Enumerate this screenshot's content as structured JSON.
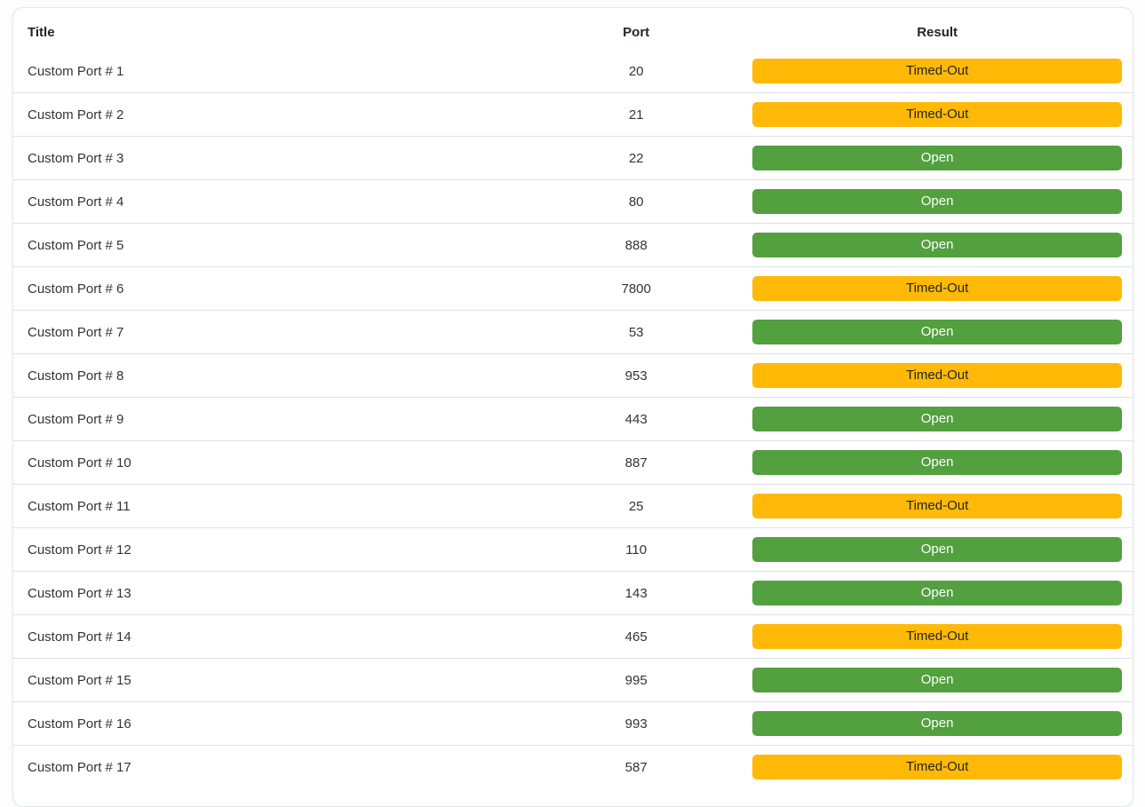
{
  "colors": {
    "open_bg": "#52A03E",
    "open_text": "#ffffff",
    "timedout_bg": "#FFB906",
    "timedout_text": "#212529",
    "row_line": "#dee2e6",
    "card_border": "#e4e7eb",
    "text_color": "#333333",
    "header_text": "#212529"
  },
  "table": {
    "columns": [
      {
        "key": "title",
        "label": "Title"
      },
      {
        "key": "port",
        "label": "Port"
      },
      {
        "key": "result",
        "label": "Result"
      }
    ],
    "rows": [
      {
        "title": "Custom Port # 1",
        "port": 20,
        "result": "Timed-Out"
      },
      {
        "title": "Custom Port # 2",
        "port": 21,
        "result": "Timed-Out"
      },
      {
        "title": "Custom Port # 3",
        "port": 22,
        "result": "Open"
      },
      {
        "title": "Custom Port # 4",
        "port": 80,
        "result": "Open"
      },
      {
        "title": "Custom Port # 5",
        "port": 888,
        "result": "Open"
      },
      {
        "title": "Custom Port # 6",
        "port": 7800,
        "result": "Timed-Out"
      },
      {
        "title": "Custom Port # 7",
        "port": 53,
        "result": "Open"
      },
      {
        "title": "Custom Port # 8",
        "port": 953,
        "result": "Timed-Out"
      },
      {
        "title": "Custom Port # 9",
        "port": 443,
        "result": "Open"
      },
      {
        "title": "Custom Port # 10",
        "port": 887,
        "result": "Open"
      },
      {
        "title": "Custom Port # 11",
        "port": 25,
        "result": "Timed-Out"
      },
      {
        "title": "Custom Port # 12",
        "port": 110,
        "result": "Open"
      },
      {
        "title": "Custom Port # 13",
        "port": 143,
        "result": "Open"
      },
      {
        "title": "Custom Port # 14",
        "port": 465,
        "result": "Timed-Out"
      },
      {
        "title": "Custom Port # 15",
        "port": 995,
        "result": "Open"
      },
      {
        "title": "Custom Port # 16",
        "port": 993,
        "result": "Open"
      },
      {
        "title": "Custom Port # 17",
        "port": 587,
        "result": "Timed-Out"
      }
    ]
  }
}
